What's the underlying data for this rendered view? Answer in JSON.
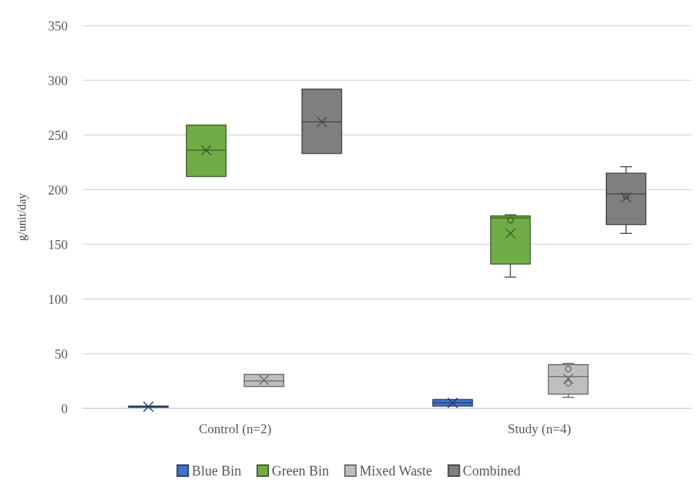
{
  "chart_data": {
    "type": "box",
    "ylabel": "g/unit/day",
    "categories": [
      "Control (n=2)",
      "Study (n=4)"
    ],
    "ylim": [
      0,
      350
    ],
    "yticks": [
      0,
      50,
      100,
      150,
      200,
      250,
      300,
      350
    ],
    "grid": "y",
    "legend": "bottom",
    "series": [
      {
        "name": "Blue Bin",
        "color": "#4472c4",
        "boxes": [
          {
            "low": 1,
            "q1": 1,
            "median": 1.5,
            "q3": 2,
            "high": 2,
            "mean": 1.5
          },
          {
            "low": 2,
            "q1": 2,
            "median": 5,
            "q3": 8,
            "high": 8,
            "mean": 5
          }
        ]
      },
      {
        "name": "Green Bin",
        "color": "#70ad47",
        "boxes": [
          {
            "low": 212,
            "q1": 212,
            "median": 236,
            "q3": 259,
            "high": 259,
            "mean": 236
          },
          {
            "low": 120,
            "q1": 132,
            "median": 174,
            "q3": 176,
            "high": 177,
            "mean": 160,
            "outliers": [
              172
            ]
          }
        ]
      },
      {
        "name": "Mixed Waste",
        "color": "#bfbfbf",
        "boxes": [
          {
            "low": 20,
            "q1": 20,
            "median": 25,
            "q3": 31,
            "high": 31,
            "mean": 26
          },
          {
            "low": 10,
            "q1": 13,
            "median": 29,
            "q3": 40,
            "high": 41,
            "mean": 27,
            "outliers": [
              36,
              23
            ]
          }
        ]
      },
      {
        "name": "Combined",
        "color": "#7f7f7f",
        "boxes": [
          {
            "low": 233,
            "q1": 233,
            "median": 262,
            "q3": 292,
            "high": 292,
            "mean": 262
          },
          {
            "low": 160,
            "q1": 168,
            "median": 196,
            "q3": 215,
            "high": 221,
            "mean": 193,
            "outliers": [
              194
            ]
          }
        ]
      }
    ]
  }
}
